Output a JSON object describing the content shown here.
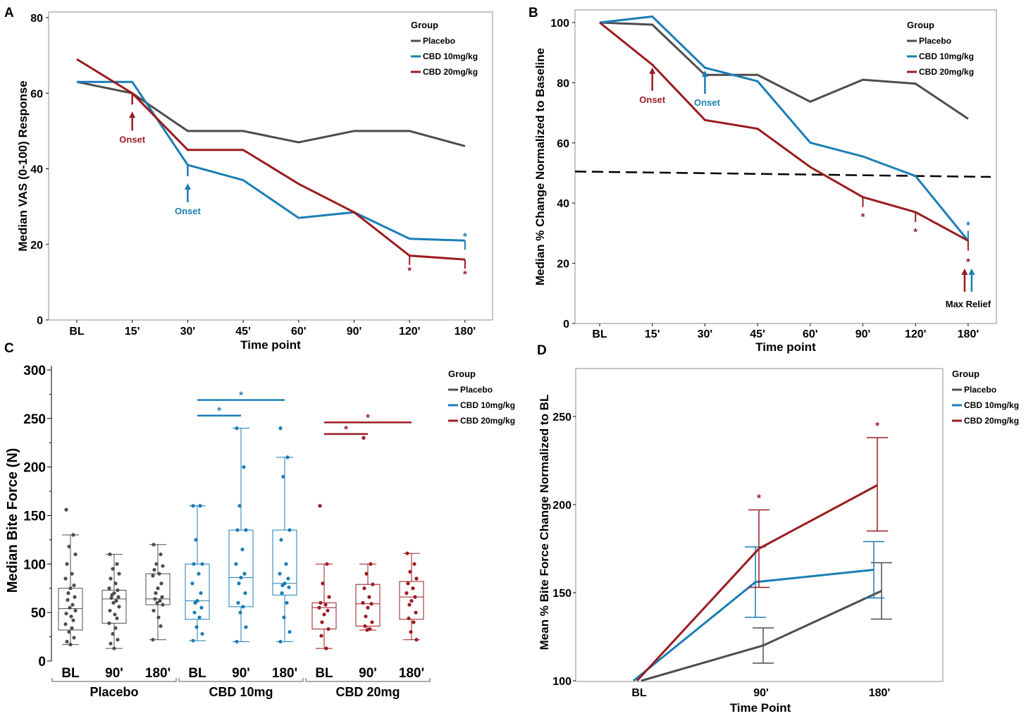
{
  "colors": {
    "placebo": "#4d4d4d",
    "cbd10": "#1b7db5",
    "cbd20": "#9b1b1f",
    "threshold": "#000000"
  },
  "chart_data": [
    {
      "panel": "A",
      "type": "line",
      "xlabel": "Time point",
      "ylabel": "Median VAS (0-100) Response",
      "categories": [
        "BL",
        "15'",
        "30'",
        "45'",
        "60'",
        "90'",
        "120'",
        "180'"
      ],
      "ylim": [
        0,
        80
      ],
      "yticks": [
        0,
        20,
        40,
        60,
        80
      ],
      "legend": {
        "title": "Group",
        "position": "top-right"
      },
      "series": [
        {
          "name": "Placebo",
          "color_key": "placebo",
          "values": [
            63,
            60,
            50,
            50,
            47,
            50,
            50,
            46
          ]
        },
        {
          "name": "CBD 10mg/kg",
          "color_key": "cbd10",
          "values": [
            63,
            63,
            41,
            37,
            27,
            28.5,
            21.5,
            21
          ]
        },
        {
          "name": "CBD 20mg/kg",
          "color_key": "cbd20",
          "values": [
            69,
            60,
            45,
            45,
            36,
            28.5,
            17,
            16
          ]
        }
      ],
      "onset": [
        {
          "label": "Onset",
          "series": "CBD 20mg/kg",
          "category": "15'"
        },
        {
          "label": "Onset",
          "series": "CBD 10mg/kg",
          "category": "30'"
        }
      ],
      "significance": [
        {
          "series": "CBD 20mg/kg",
          "category": "120'",
          "label": "*"
        },
        {
          "series": "CBD 20mg/kg",
          "category": "180'",
          "label": "*"
        },
        {
          "series": "CBD 10mg/kg",
          "category": "180'",
          "label": "*"
        }
      ]
    },
    {
      "panel": "B",
      "type": "line",
      "xlabel": "Time point",
      "ylabel": "Median % Change Normalized to Baseline",
      "categories": [
        "BL",
        "15'",
        "30'",
        "45'",
        "60'",
        "90'",
        "120'",
        "180'"
      ],
      "ylim": [
        0,
        100
      ],
      "yticks": [
        0,
        20,
        40,
        60,
        80,
        100
      ],
      "legend": {
        "title": "Group",
        "position": "top-right"
      },
      "series": [
        {
          "name": "Placebo",
          "color_key": "placebo",
          "values": [
            100,
            99.3,
            82.6,
            82.6,
            73.7,
            81,
            79.7,
            68
          ]
        },
        {
          "name": "CBD 10mg/kg",
          "color_key": "cbd10",
          "values": [
            100,
            102,
            85,
            80.5,
            60.1,
            55.5,
            49,
            27.5
          ]
        },
        {
          "name": "CBD 20mg/kg",
          "color_key": "cbd20",
          "values": [
            100,
            86,
            67.6,
            64.7,
            52,
            42,
            37,
            27.5
          ]
        }
      ],
      "threshold_line": {
        "style": "dashed",
        "from": 50.5,
        "to": 48.7
      },
      "onset": [
        {
          "label": "Onset",
          "series": "CBD 20mg/kg",
          "category": "15'"
        },
        {
          "label": "Onset",
          "series": "CBD 10mg/kg",
          "category": "30'"
        }
      ],
      "max_relief": {
        "label": "Max Relief",
        "category": "180'"
      },
      "significance": [
        {
          "series": "CBD 20mg/kg",
          "category": "90'",
          "label": "*"
        },
        {
          "series": "CBD 20mg/kg",
          "category": "120'",
          "label": "*"
        },
        {
          "series": "CBD 20mg/kg",
          "category": "180'",
          "label": "*"
        },
        {
          "series": "CBD 10mg/kg",
          "category": "180'",
          "label": "*"
        }
      ]
    },
    {
      "panel": "C",
      "type": "box",
      "ylabel": "Median Bite Force (N)",
      "ylim": [
        0,
        300
      ],
      "yticks": [
        0,
        50,
        100,
        150,
        200,
        250,
        300
      ],
      "legend": {
        "title": "Group",
        "position": "right"
      },
      "groups": [
        {
          "name": "Placebo",
          "color_key": "placebo",
          "boxes": [
            {
              "time": "BL",
              "whisker_low": 17,
              "q1": 32,
              "median": 54,
              "q3": 75,
              "whisker_high": 130,
              "points": [
                156,
                130,
                118,
                110,
                100,
                90,
                85,
                78,
                75,
                70,
                66,
                63,
                58,
                55,
                52,
                49,
                46,
                42,
                38,
                34,
                30,
                24,
                20,
                17
              ]
            },
            {
              "time": "90'",
              "whisker_low": 13,
              "q1": 39,
              "median": 64,
              "q3": 73,
              "whisker_high": 110,
              "points": [
                110,
                100,
                95,
                90,
                85,
                80,
                75,
                73,
                70,
                68,
                66,
                65,
                62,
                60,
                56,
                52,
                48,
                44,
                39,
                34,
                28,
                22,
                18,
                13
              ]
            },
            {
              "time": "180'",
              "whisker_low": 22,
              "q1": 58,
              "median": 64,
              "q3": 90,
              "whisker_high": 120,
              "points": [
                120,
                110,
                100,
                98,
                94,
                90,
                88,
                80,
                75,
                70,
                66,
                64,
                62,
                60,
                58,
                52,
                45,
                36,
                22
              ]
            }
          ]
        },
        {
          "name": "CBD 10mg",
          "color_key": "cbd10",
          "boxes": [
            {
              "time": "BL",
              "whisker_low": 21,
              "q1": 43,
              "median": 62,
              "q3": 100,
              "whisker_high": 160,
              "points": [
                160,
                160,
                125,
                100,
                100,
                90,
                80,
                70,
                62,
                60,
                55,
                50,
                45,
                35,
                28,
                21
              ]
            },
            {
              "time": "90'",
              "whisker_low": 20,
              "q1": 56,
              "median": 86,
              "q3": 135,
              "whisker_high": 240,
              "points": [
                240,
                200,
                160,
                135,
                135,
                115,
                100,
                90,
                86,
                80,
                70,
                60,
                56,
                50,
                35,
                20
              ]
            },
            {
              "time": "180'",
              "whisker_low": 20,
              "q1": 68,
              "median": 80,
              "q3": 135,
              "whisker_high": 210,
              "points": [
                240,
                210,
                190,
                135,
                125,
                100,
                90,
                85,
                80,
                78,
                76,
                70,
                60,
                45,
                30,
                20
              ]
            }
          ]
        },
        {
          "name": "CBD 20mg",
          "color_key": "cbd20",
          "boxes": [
            {
              "time": "BL",
              "whisker_low": 13,
              "q1": 33,
              "median": 55,
              "q3": 60,
              "whisker_high": 100,
              "points": [
                160,
                100,
                80,
                66,
                60,
                58,
                55,
                52,
                48,
                40,
                33,
                26,
                13
              ]
            },
            {
              "time": "90'",
              "whisker_low": 32,
              "q1": 36,
              "median": 59,
              "q3": 79,
              "whisker_high": 100,
              "points": [
                230,
                100,
                90,
                79,
                75,
                66,
                60,
                59,
                55,
                46,
                40,
                36,
                33,
                32
              ]
            },
            {
              "time": "180'",
              "whisker_low": 22,
              "q1": 43,
              "median": 66,
              "q3": 82,
              "whisker_high": 111,
              "points": [
                111,
                100,
                92,
                85,
                80,
                75,
                70,
                66,
                62,
                58,
                50,
                44,
                40,
                30,
                22
              ]
            }
          ]
        }
      ],
      "significance": [
        {
          "group": "CBD 10mg",
          "from": "BL",
          "to": "90'",
          "y": 253,
          "label": "*"
        },
        {
          "group": "CBD 10mg",
          "from": "BL",
          "to": "180'",
          "y": 269,
          "label": "*"
        },
        {
          "group": "CBD 20mg",
          "from": "BL",
          "to": "90'",
          "y": 234,
          "label": "*"
        },
        {
          "group": "CBD 20mg",
          "from": "BL",
          "to": "180'",
          "y": 246,
          "label": "*"
        }
      ]
    },
    {
      "panel": "D",
      "type": "line",
      "xlabel": "Time Point",
      "ylabel": "Mean % Bite Force Change Normalized to BL",
      "categories": [
        "BL",
        "90'",
        "180'"
      ],
      "ylim": [
        100,
        250
      ],
      "yticks": [
        100,
        150,
        200,
        250
      ],
      "legend": {
        "title": "Group",
        "position": "top-right"
      },
      "series": [
        {
          "name": "Placebo",
          "color_key": "placebo",
          "values": [
            100,
            120,
            151
          ],
          "err_low": [
            100,
            110,
            135
          ],
          "err_high": [
            100,
            130,
            167
          ]
        },
        {
          "name": "CBD 10mg/kg",
          "color_key": "cbd10",
          "values": [
            100,
            156,
            163
          ],
          "err_low": [
            100,
            136,
            147
          ],
          "err_high": [
            100,
            176,
            179
          ]
        },
        {
          "name": "CBD 20mg/kg",
          "color_key": "cbd20",
          "values": [
            100,
            175,
            211
          ],
          "err_low": [
            100,
            153,
            185
          ],
          "err_high": [
            100,
            197,
            238
          ]
        }
      ],
      "significance": [
        {
          "series": "CBD 20mg/kg",
          "category": "90'",
          "label": "*"
        },
        {
          "series": "CBD 20mg/kg",
          "category": "180'",
          "label": "*"
        }
      ]
    }
  ]
}
